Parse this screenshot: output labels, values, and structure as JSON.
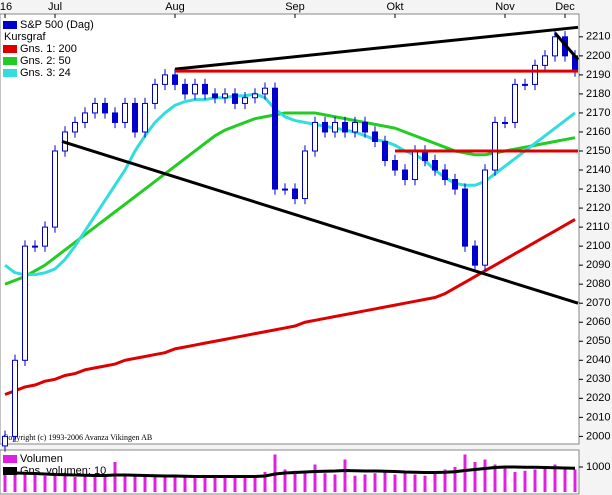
{
  "chart_data": {
    "type": "candlestick",
    "legend_title": "Kursgraf",
    "annotation": "Copyright (c) 1993-2006 Avanza Vikingen AB",
    "categories": [
      "'16",
      null,
      null,
      null,
      null,
      "Jul",
      null,
      null,
      null,
      null,
      null,
      null,
      null,
      null,
      null,
      null,
      null,
      "Aug",
      null,
      null,
      null,
      null,
      null,
      null,
      null,
      null,
      null,
      null,
      null,
      "Sep",
      null,
      null,
      null,
      null,
      null,
      null,
      null,
      null,
      null,
      "Okt",
      null,
      null,
      null,
      null,
      null,
      null,
      null,
      null,
      null,
      null,
      "Nov",
      null,
      null,
      null,
      null,
      null,
      "Dec",
      null
    ],
    "series": [
      {
        "name": "S&P 500 (Dag)",
        "color": "#0000cc",
        "open": [
          1995,
          2000,
          2040,
          2100,
          2100,
          2110,
          2150,
          2160,
          2165,
          2170,
          2175,
          2170,
          2165,
          2175,
          2160,
          2175,
          2185,
          2190,
          2185,
          2180,
          2185,
          2180,
          2178,
          2180,
          2175,
          2178,
          2180,
          2183,
          2130,
          2130,
          2125,
          2150,
          2165,
          2160,
          2165,
          2160,
          2165,
          2160,
          2155,
          2145,
          2140,
          2135,
          2150,
          2145,
          2140,
          2135,
          2130,
          2100,
          2090,
          2140,
          2165,
          2165,
          2185,
          2185,
          2195,
          2200,
          2210,
          2200
        ],
        "high": [
          2003,
          2043,
          2103,
          2103,
          2113,
          2153,
          2163,
          2168,
          2173,
          2178,
          2178,
          2173,
          2178,
          2178,
          2178,
          2188,
          2193,
          2193,
          2188,
          2188,
          2188,
          2183,
          2183,
          2183,
          2181,
          2183,
          2186,
          2186,
          2133,
          2133,
          2153,
          2168,
          2168,
          2168,
          2168,
          2168,
          2168,
          2163,
          2158,
          2148,
          2143,
          2153,
          2153,
          2148,
          2143,
          2138,
          2133,
          2103,
          2143,
          2168,
          2168,
          2188,
          2188,
          2198,
          2203,
          2213,
          2213,
          2203
        ],
        "low": [
          1992,
          1997,
          2037,
          2097,
          2097,
          2107,
          2147,
          2157,
          2162,
          2167,
          2167,
          2162,
          2162,
          2157,
          2157,
          2172,
          2182,
          2182,
          2177,
          2177,
          2177,
          2175,
          2175,
          2172,
          2172,
          2175,
          2177,
          2127,
          2127,
          2122,
          2122,
          2147,
          2157,
          2157,
          2157,
          2157,
          2157,
          2152,
          2142,
          2137,
          2132,
          2132,
          2142,
          2137,
          2132,
          2127,
          2097,
          2087,
          2087,
          2137,
          2162,
          2162,
          2182,
          2182,
          2192,
          2197,
          2197,
          2189
        ],
        "values": [
          2000,
          2040,
          2100,
          2100,
          2110,
          2150,
          2160,
          2165,
          2170,
          2175,
          2170,
          2165,
          2175,
          2160,
          2175,
          2185,
          2190,
          2185,
          2180,
          2185,
          2180,
          2178,
          2180,
          2175,
          2178,
          2180,
          2183,
          2130,
          2130,
          2125,
          2150,
          2165,
          2160,
          2165,
          2160,
          2165,
          2160,
          2155,
          2145,
          2140,
          2135,
          2150,
          2145,
          2140,
          2135,
          2130,
          2100,
          2090,
          2140,
          2165,
          2165,
          2185,
          2185,
          2195,
          2200,
          2210,
          2200,
          2192
        ]
      },
      {
        "name": "Gns. 1: 200",
        "color": "#dd0000",
        "values": [
          2022,
          2024,
          2026,
          2027,
          2029,
          2030,
          2032,
          2033,
          2035,
          2036,
          2037,
          2038,
          2040,
          2041,
          2042,
          2043,
          2044,
          2046,
          2047,
          2048,
          2049,
          2050,
          2051,
          2052,
          2053,
          2054,
          2055,
          2056,
          2057,
          2058,
          2060,
          2061,
          2062,
          2063,
          2064,
          2065,
          2066,
          2067,
          2068,
          2069,
          2070,
          2071,
          2072,
          2073,
          2075,
          2078,
          2081,
          2084,
          2087,
          2090,
          2093,
          2096,
          2099,
          2102,
          2105,
          2108,
          2111,
          2114
        ]
      },
      {
        "name": "Gns. 2: 50",
        "color": "#22cc22",
        "values": [
          2080,
          2082,
          2084,
          2087,
          2090,
          2094,
          2098,
          2102,
          2106,
          2110,
          2114,
          2118,
          2122,
          2126,
          2130,
          2134,
          2138,
          2142,
          2146,
          2150,
          2154,
          2158,
          2161,
          2163,
          2165,
          2167,
          2168,
          2169,
          2170,
          2170,
          2170,
          2170,
          2169,
          2168,
          2167,
          2166,
          2165,
          2164,
          2163,
          2162,
          2160,
          2158,
          2156,
          2154,
          2152,
          2150,
          2149,
          2148,
          2148,
          2149,
          2150,
          2151,
          2152,
          2153,
          2154,
          2155,
          2156,
          2157
        ]
      },
      {
        "name": "Gns. 3: 24",
        "color": "#33dddd",
        "values": [
          2090,
          2086,
          2085,
          2085,
          2086,
          2088,
          2093,
          2100,
          2108,
          2116,
          2124,
          2132,
          2140,
          2150,
          2158,
          2165,
          2170,
          2174,
          2176,
          2177,
          2177,
          2178,
          2178,
          2179,
          2179,
          2180,
          2178,
          2172,
          2168,
          2166,
          2165,
          2164,
          2163,
          2162,
          2161,
          2160,
          2158,
          2156,
          2155,
          2153,
          2150,
          2148,
          2145,
          2140,
          2136,
          2133,
          2132,
          2132,
          2134,
          2138,
          2142,
          2146,
          2150,
          2154,
          2158,
          2162,
          2166,
          2170
        ]
      }
    ],
    "trend_lines": [
      {
        "x": [
          5.7,
          57.3
        ],
        "y": [
          2155,
          2070
        ],
        "color": "#000000"
      },
      {
        "x": [
          17,
          57.3
        ],
        "y": [
          2193,
          2215
        ],
        "color": "#000000"
      },
      {
        "x": [
          55,
          57.3
        ],
        "y": [
          2212,
          2198
        ],
        "color": "#000000"
      },
      {
        "x": [
          17,
          57.3
        ],
        "y": [
          2192,
          2192
        ],
        "color": "#dd0000"
      },
      {
        "x": [
          39,
          57.3
        ],
        "y": [
          2150,
          2150
        ],
        "color": "#dd0000"
      }
    ],
    "ylim": [
      1996,
      2222
    ],
    "yticks": [
      2000,
      2010,
      2020,
      2030,
      2040,
      2050,
      2060,
      2070,
      2080,
      2090,
      2100,
      2110,
      2120,
      2130,
      2140,
      2150,
      2160,
      2170,
      2180,
      2190,
      2200,
      2210
    ],
    "volume": {
      "series": [
        {
          "name": "Volumen",
          "color": "#e020e0",
          "values": [
            900,
            800,
            750,
            700,
            650,
            700,
            650,
            600,
            620,
            650,
            700,
            1200,
            650,
            700,
            600,
            650,
            620,
            600,
            580,
            600,
            640,
            600,
            650,
            620,
            580,
            600,
            800,
            1500,
            900,
            850,
            800,
            1100,
            750,
            700,
            1300,
            650,
            700,
            750,
            800,
            700,
            750,
            700,
            650,
            800,
            900,
            1000,
            1500,
            1200,
            1300,
            1100,
            1000,
            800,
            850,
            900,
            950,
            1100,
            1000,
            900
          ]
        },
        {
          "name": "Gns. volumen: 10",
          "color": "#000000",
          "values": [
            760,
            760,
            750,
            740,
            720,
            700,
            690,
            680,
            670,
            660,
            660,
            680,
            680,
            670,
            660,
            650,
            640,
            640,
            630,
            620,
            620,
            620,
            620,
            620,
            620,
            620,
            640,
            720,
            760,
            780,
            800,
            820,
            830,
            840,
            860,
            850,
            840,
            840,
            830,
            820,
            800,
            790,
            780,
            780,
            790,
            810,
            860,
            900,
            940,
            980,
            1000,
            1000,
            990,
            990,
            980,
            970,
            960,
            950
          ]
        }
      ],
      "ylim": [
        0,
        1600
      ],
      "yticks": [
        1000
      ]
    }
  }
}
